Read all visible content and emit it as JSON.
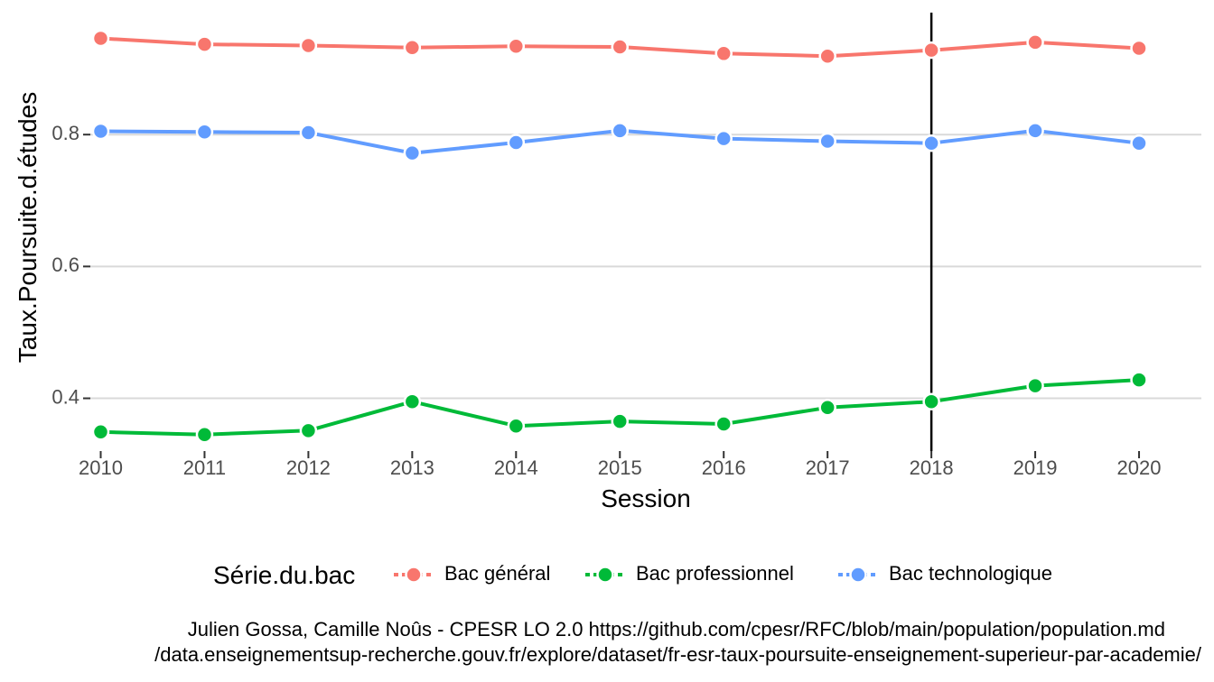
{
  "chart_data": {
    "type": "line",
    "xlabel": "Session",
    "ylabel": "Taux.Poursuite.d.études",
    "x": [
      2010,
      2011,
      2012,
      2013,
      2014,
      2015,
      2016,
      2017,
      2018,
      2019,
      2020
    ],
    "x_tick_labels": [
      "2010",
      "2011",
      "2012",
      "2013",
      "2014",
      "2015",
      "2016",
      "2017",
      "2018",
      "2019",
      "2020"
    ],
    "y_ticks": [
      0.4,
      0.6,
      0.8
    ],
    "y_tick_labels": [
      "0.4",
      "0.6",
      "0.8"
    ],
    "xlim": [
      2009.9,
      2020.6
    ],
    "ylim": [
      0.32,
      0.985
    ],
    "grid": "horizontal",
    "vline_x": 2018,
    "legend_title": "Série.du.bac",
    "legend_position": "bottom",
    "series": [
      {
        "name": "Bac général",
        "color": "#F8766D",
        "values": [
          0.946,
          0.937,
          0.935,
          0.932,
          0.934,
          0.933,
          0.923,
          0.919,
          0.928,
          0.94,
          0.931
        ]
      },
      {
        "name": "Bac professionnel",
        "color": "#00BA38",
        "values": [
          0.349,
          0.345,
          0.351,
          0.395,
          0.358,
          0.365,
          0.361,
          0.386,
          0.395,
          0.419,
          0.428
        ]
      },
      {
        "name": "Bac technologique",
        "color": "#619CFF",
        "values": [
          0.805,
          0.804,
          0.803,
          0.772,
          0.788,
          0.806,
          0.794,
          0.79,
          0.787,
          0.806,
          0.787
        ]
      }
    ],
    "caption_lines": [
      "Julien Gossa, Camille Noûs - CPESR LO 2.0 https://github.com/cpesr/RFC/blob/main/population/population.md",
      "/data.enseignementsup-recherche.gouv.fr/explore/dataset/fr-esr-taux-poursuite-enseignement-superieur-par-academie/"
    ]
  }
}
